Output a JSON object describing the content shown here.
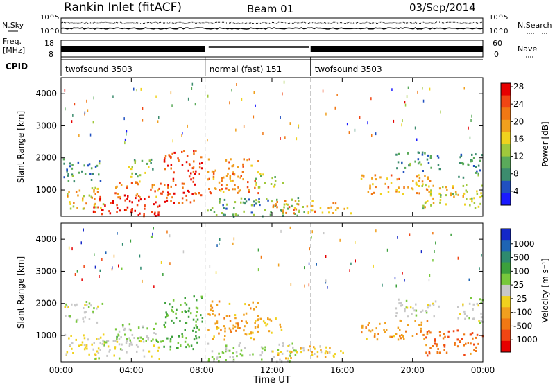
{
  "header": {
    "station": "Rankin Inlet (fitACF)",
    "beam": "Beam 01",
    "date": "03/Sep/2014"
  },
  "summary": {
    "left_label_nsky": "N.Sky",
    "left_label_freq_line1": "Freq.",
    "left_label_freq_line2": "[MHz]",
    "left_label_cpid": "CPID",
    "nsky_ticks": [
      "10^5",
      "10^0"
    ],
    "freq_ticks": [
      "18",
      "8"
    ],
    "right_label_nsearch": "N.Search",
    "right_label_nave": "Nave",
    "nsearch_ticks": [
      "10^5",
      "10^0"
    ],
    "nave_ticks": [
      "60",
      "0"
    ],
    "cpid_segments": [
      {
        "label": "twofsound 3503",
        "start_h": 0,
        "end_h": 8.2
      },
      {
        "label": "normal (fast) 151",
        "start_h": 8.2,
        "end_h": 14.2
      },
      {
        "label": "twofsound 3503",
        "start_h": 14.2,
        "end_h": 24
      }
    ]
  },
  "axes": {
    "ylabel": "Slant Range [km]",
    "xlabel": "Time UT",
    "y_ticks": [
      "1000",
      "2000",
      "3000",
      "4000"
    ],
    "x_ticks": [
      "00:00",
      "04:00",
      "08:00",
      "12:00",
      "16:00",
      "20:00",
      "00:00"
    ]
  },
  "colorbar_power": {
    "label": "Power [dB]",
    "ticks": [
      "4",
      "8",
      "12",
      "16",
      "20",
      "24",
      "28"
    ],
    "colors": [
      "#1a1aff",
      "#2050c0",
      "#3c8c6e",
      "#5aaa5a",
      "#a0c83c",
      "#f0d21e",
      "#f0a01e",
      "#f07814",
      "#f04614",
      "#e60000"
    ]
  },
  "colorbar_velocity": {
    "label": "Velocity [m s⁻¹]",
    "ticks": [
      "1000",
      "500",
      "100",
      "25",
      "-25",
      "-100",
      "-500",
      "-1000"
    ],
    "colors": [
      "#1428c8",
      "#1e64b4",
      "#2e8a6e",
      "#3ca03c",
      "#78c83c",
      "#c8c8c8",
      "#f0d21e",
      "#f0a01e",
      "#f07814",
      "#f04614",
      "#e60000"
    ]
  },
  "chart_data": [
    {
      "type": "heatmap",
      "title": "Power",
      "x_range_h": [
        0,
        24
      ],
      "y_range_km": [
        180,
        4500
      ],
      "xlabel": "Time UT",
      "ylabel": "Slant Range [km]",
      "colorbar_label": "Power [dB]",
      "value_range": [
        0,
        30
      ],
      "patches": [
        {
          "t0": 0.1,
          "t1": 2.2,
          "r0": 1300,
          "r1": 2000,
          "v": 8
        },
        {
          "t0": 0.1,
          "t1": 2.4,
          "r0": 400,
          "r1": 1100,
          "v": 18
        },
        {
          "t0": 1.8,
          "t1": 5.6,
          "r0": 200,
          "r1": 900,
          "v": 28
        },
        {
          "t0": 3.0,
          "t1": 5.8,
          "r0": 800,
          "r1": 1300,
          "v": 22
        },
        {
          "t0": 3.8,
          "t1": 5.2,
          "r0": 1400,
          "r1": 2000,
          "v": 12
        },
        {
          "t0": 5.8,
          "t1": 8.0,
          "r0": 600,
          "r1": 2300,
          "v": 26
        },
        {
          "t0": 8.3,
          "t1": 11.2,
          "r0": 900,
          "r1": 2000,
          "v": 22
        },
        {
          "t0": 8.3,
          "t1": 13.8,
          "r0": 200,
          "r1": 800,
          "v": 10
        },
        {
          "t0": 11.0,
          "t1": 12.6,
          "r0": 1100,
          "r1": 1600,
          "v": 14
        },
        {
          "t0": 12.0,
          "t1": 16.5,
          "r0": 300,
          "r1": 700,
          "v": 20
        },
        {
          "t0": 17.0,
          "t1": 21.0,
          "r0": 900,
          "r1": 1500,
          "v": 20
        },
        {
          "t0": 19.0,
          "t1": 21.5,
          "r0": 1600,
          "r1": 2200,
          "v": 8
        },
        {
          "t0": 20.5,
          "t1": 24.0,
          "r0": 400,
          "r1": 1200,
          "v": 16
        },
        {
          "t0": 22.5,
          "t1": 24.0,
          "r0": 1400,
          "r1": 2200,
          "v": 8
        }
      ]
    },
    {
      "type": "heatmap",
      "title": "Velocity",
      "x_range_h": [
        0,
        24
      ],
      "y_range_km": [
        180,
        4500
      ],
      "xlabel": "Time UT",
      "ylabel": "Slant Range [km]",
      "colorbar_label": "Velocity [m s⁻¹]",
      "value_range": [
        -1000,
        1000
      ],
      "patches": [
        {
          "t0": 0.1,
          "t1": 2.4,
          "r0": 1400,
          "r1": 2100,
          "v": 0
        },
        {
          "t0": 0.1,
          "t1": 2.4,
          "r0": 400,
          "r1": 1100,
          "v": -150
        },
        {
          "t0": 1.8,
          "t1": 5.6,
          "r0": 300,
          "r1": 1000,
          "v": 0
        },
        {
          "t0": 3.0,
          "t1": 5.8,
          "r0": 800,
          "r1": 1400,
          "v": 150
        },
        {
          "t0": 5.8,
          "t1": 8.0,
          "r0": 600,
          "r1": 2300,
          "v": 300
        },
        {
          "t0": 8.3,
          "t1": 11.2,
          "r0": 900,
          "r1": 2100,
          "v": -400
        },
        {
          "t0": 8.3,
          "t1": 13.8,
          "r0": 200,
          "r1": 800,
          "v": 80
        },
        {
          "t0": 11.0,
          "t1": 12.6,
          "r0": 1100,
          "r1": 1600,
          "v": -300
        },
        {
          "t0": 12.0,
          "t1": 16.5,
          "r0": 300,
          "r1": 700,
          "v": -200
        },
        {
          "t0": 17.0,
          "t1": 21.0,
          "r0": 900,
          "r1": 1500,
          "v": -400
        },
        {
          "t0": 19.0,
          "t1": 21.5,
          "r0": 1600,
          "r1": 2200,
          "v": 0
        },
        {
          "t0": 20.5,
          "t1": 24.0,
          "r0": 400,
          "r1": 1200,
          "v": -600
        },
        {
          "t0": 22.5,
          "t1": 24.0,
          "r0": 1400,
          "r1": 2200,
          "v": 0
        }
      ]
    }
  ]
}
